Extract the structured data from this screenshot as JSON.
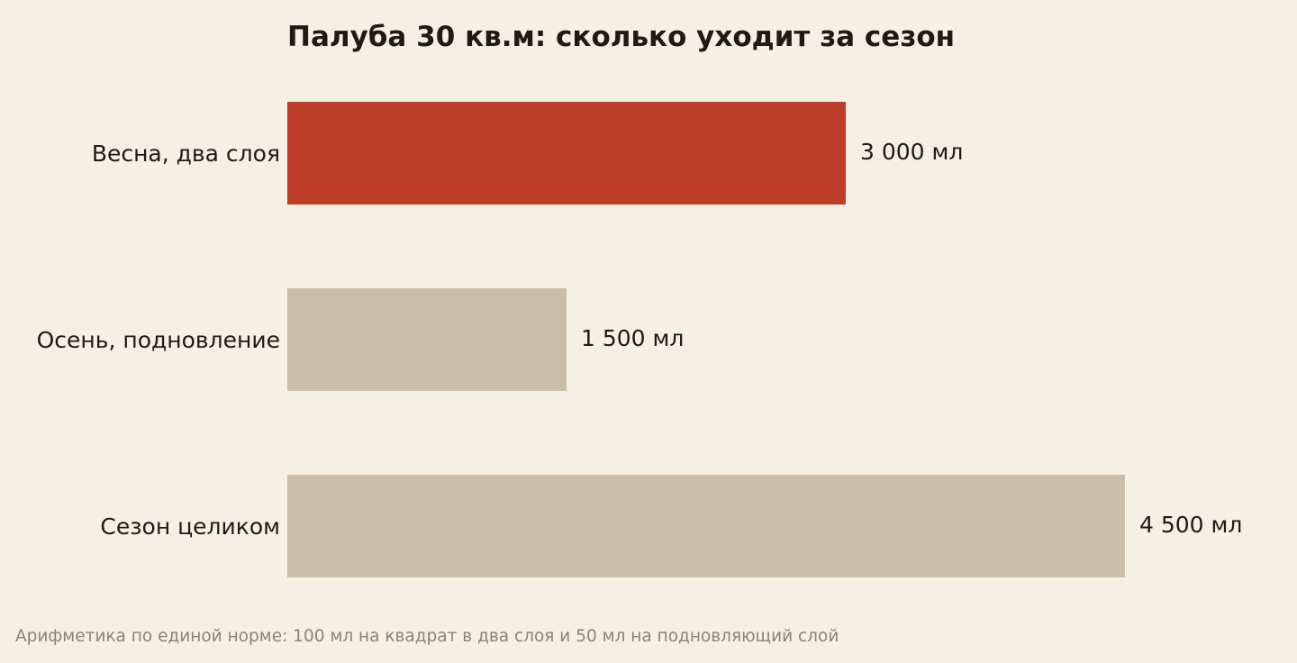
{
  "colors": {
    "background": "#f6f0e4",
    "highlight": "#bc3e28",
    "muted": "#c9bfa8",
    "text": "#1f1a14",
    "footnote": "#8a8478"
  },
  "chart_data": {
    "type": "bar",
    "orientation": "horizontal",
    "title": "Палуба 30 кв.м: сколько уходит за сезон",
    "categories": [
      "Весна, два слоя",
      "Осень, подновление",
      "Сезон целиком"
    ],
    "values": [
      3000,
      1500,
      4500
    ],
    "value_labels": [
      "3 000 мл",
      "1 500 мл",
      "4 500 мл"
    ],
    "highlighted": [
      true,
      false,
      false
    ],
    "unit": "мл",
    "xlim": [
      0,
      4500
    ],
    "grid": false,
    "legend": "none"
  },
  "footnote": "Арифметика по единой норме: 100 мл на квадрат в два слоя и 50 мл на подновляющий слой"
}
